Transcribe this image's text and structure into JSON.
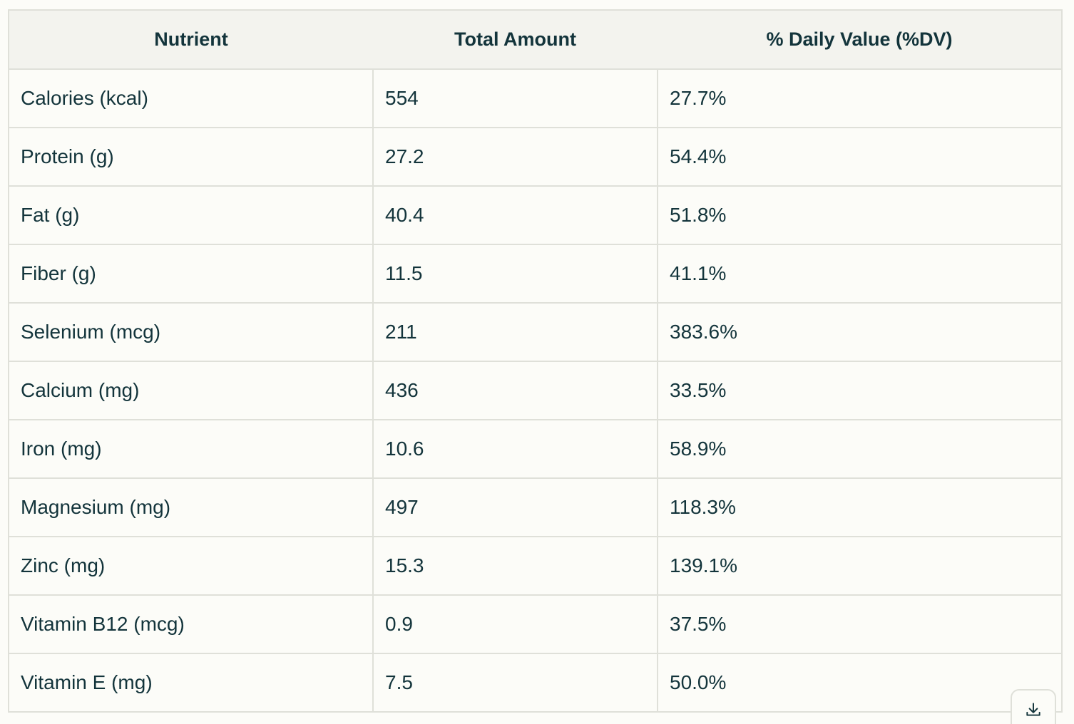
{
  "table": {
    "headers": [
      "Nutrient",
      "Total Amount",
      "% Daily Value (%DV)"
    ],
    "rows": [
      [
        "Calories (kcal)",
        "554",
        "27.7%"
      ],
      [
        "Protein (g)",
        "27.2",
        "54.4%"
      ],
      [
        "Fat (g)",
        "40.4",
        "51.8%"
      ],
      [
        "Fiber (g)",
        "11.5",
        "41.1%"
      ],
      [
        "Selenium (mcg)",
        "211",
        "383.6%"
      ],
      [
        "Calcium (mg)",
        "436",
        "33.5%"
      ],
      [
        "Iron (mg)",
        "10.6",
        "58.9%"
      ],
      [
        "Magnesium (mg)",
        "497",
        "118.3%"
      ],
      [
        "Zinc (mg)",
        "15.3",
        "139.1%"
      ],
      [
        "Vitamin B12 (mcg)",
        "0.9",
        "37.5%"
      ],
      [
        "Vitamin E (mg)",
        "7.5",
        "50.0%"
      ]
    ]
  },
  "download_button": {
    "icon": "download-icon"
  },
  "colors": {
    "text": "#13343b",
    "header_bg": "#f3f3ee",
    "page_bg": "#fcfcf8",
    "border": "#dfe0d9"
  }
}
